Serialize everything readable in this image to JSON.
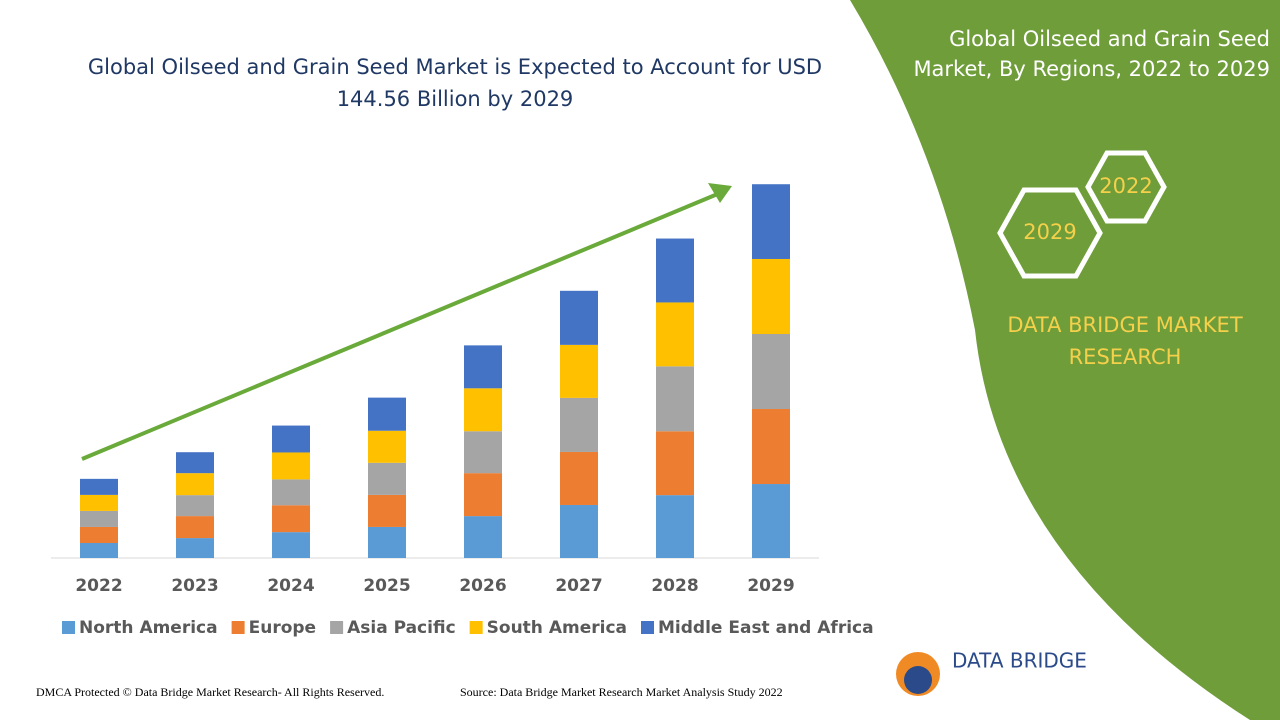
{
  "chart_data": {
    "type": "bar",
    "stacked": true,
    "title": [
      "Global Oilseed and Grain Seed Market is Expected to Account for USD",
      "144.56 Billion by 2029"
    ],
    "categories": [
      "2022",
      "2023",
      "2024",
      "2025",
      "2026",
      "2027",
      "2028",
      "2029"
    ],
    "series": [
      {
        "name": "North America",
        "color": "#5b9bd5",
        "values": [
          5.8,
          7.7,
          10.0,
          12.0,
          16.2,
          20.5,
          24.3,
          28.6
        ]
      },
      {
        "name": "Europe",
        "color": "#ed7d31",
        "values": [
          6.2,
          8.5,
          10.4,
          12.4,
          16.6,
          20.5,
          24.7,
          29.0
        ]
      },
      {
        "name": "Asia Pacific",
        "color": "#a5a5a5",
        "values": [
          6.2,
          8.1,
          10.0,
          12.4,
          16.2,
          20.9,
          25.1,
          29.0
        ]
      },
      {
        "name": "South America",
        "color": "#ffc000",
        "values": [
          6.2,
          8.5,
          10.4,
          12.4,
          16.6,
          20.5,
          24.7,
          29.0
        ]
      },
      {
        "name": "Middle East and Africa",
        "color": "#4472c4",
        "values": [
          6.2,
          8.1,
          10.4,
          12.8,
          16.6,
          20.9,
          24.7,
          28.9
        ]
      }
    ],
    "ylim": [
      0,
      150
    ],
    "legend": "bottom"
  },
  "panel": {
    "title": [
      "Global Oilseed and Grain Seed",
      "Market, By Regions, 2022 to 2029"
    ],
    "hexagons": [
      "2022",
      "2029"
    ],
    "brand": [
      "DATA BRIDGE MARKET",
      "RESEARCH"
    ]
  },
  "logo": "DATA BRIDGE",
  "footer": {
    "left": "DMCA Protected © Data Bridge Market Research- All Rights Reserved.",
    "right": "Source: Data Bridge Market Research Market Analysis Study 2022"
  }
}
